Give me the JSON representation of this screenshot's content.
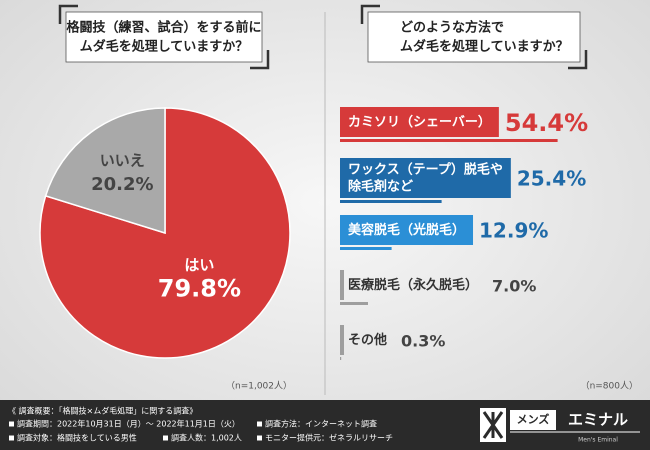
{
  "chart_data": [
    {
      "type": "pie",
      "title": [
        "格闘技（練習、試合）をする前に",
        "ムダ毛を処理していますか？"
      ],
      "categories": [
        "はい",
        "いいえ"
      ],
      "values": [
        79.8,
        20.2
      ],
      "value_labels": [
        "79.8%",
        "20.2%"
      ],
      "colors": [
        "#d63a3a",
        "#a9a9a9"
      ],
      "note": "（n=1,002人）"
    },
    {
      "type": "bar",
      "title": [
        "どのような方法で",
        "ムダ毛を処理していますか？"
      ],
      "categories": [
        "カミソリ（シェーバー）",
        "ワックス（テープ）脱毛や\n除毛剤など",
        "美容脱毛（光脱毛）",
        "医療脱毛（永久脱毛）",
        "その他"
      ],
      "values": [
        54.4,
        25.4,
        12.9,
        7.0,
        0.3
      ],
      "value_labels": [
        "54.4%",
        "25.4%",
        "12.9%",
        "7.0%",
        "0.3%"
      ],
      "colors": [
        "#d63a3a",
        "#1f6aa8",
        "#2b8fd6",
        "#9e9e9e",
        "#9e9e9e"
      ],
      "value_label_colors": [
        "#d63a3a",
        "#1f6aa8",
        "#1f6aa8",
        "#444444",
        "#444444"
      ],
      "xlim": [
        0,
        60
      ],
      "note": "（n=800人）"
    }
  ],
  "footer": {
    "heading": "《 調査概要：「格闘技×ムダ毛処理」に関する調査》",
    "items": [
      "調査期間：2022年10月31日（月）～ 2022年11月1日（火）",
      "調査方法：インターネット調査",
      "調査対象：格闘技をしている男性",
      "調査人数：1,002人",
      "モニター提供元：ゼネラルリサーチ"
    ]
  },
  "logo": {
    "prefix": "メンズ",
    "name": "エミナル",
    "sub": "Men's Eminal"
  }
}
